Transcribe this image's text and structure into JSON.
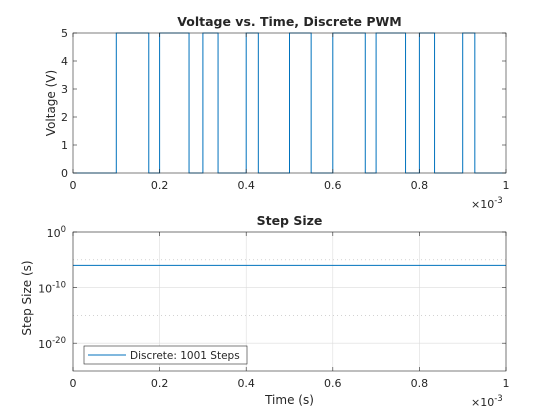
{
  "chart_data": [
    {
      "type": "line",
      "title": "Voltage vs. Time, Discrete PWM",
      "xlabel": "",
      "ylabel": "Voltage (V)",
      "xlim": [
        0,
        0.001
      ],
      "ylim": [
        0,
        5
      ],
      "x_exponent_label": "×10",
      "x_exponent_power": "-3",
      "xticks": [
        0,
        0.0002,
        0.0004,
        0.0006,
        0.0008,
        0.001
      ],
      "xtick_labels": [
        "0",
        "0.2",
        "0.4",
        "0.6",
        "0.8",
        "1"
      ],
      "yticks": [
        0,
        1,
        2,
        3,
        4,
        5
      ],
      "ytick_labels": [
        "0",
        "1",
        "2",
        "3",
        "4",
        "5"
      ],
      "grid": false,
      "color": "#0072bd",
      "pulses": [
        [
          0.0001,
          0.000175
        ],
        [
          0.0002,
          0.000268
        ],
        [
          0.0003,
          0.000335
        ],
        [
          0.0004,
          0.000428
        ],
        [
          0.0005,
          0.00055
        ],
        [
          0.0006,
          0.000675
        ],
        [
          0.0007,
          0.000768
        ],
        [
          0.0008,
          0.000835
        ],
        [
          0.0009,
          0.000928
        ]
      ]
    },
    {
      "type": "line",
      "title": "Step Size",
      "xlabel": "Time (s)",
      "ylabel": "Step Size (s)",
      "xlim": [
        0,
        0.001
      ],
      "ylog_lim": [
        -25,
        0
      ],
      "yscale": "log",
      "x_exponent_label": "×10",
      "x_exponent_power": "-3",
      "xticks": [
        0,
        0.0002,
        0.0004,
        0.0006,
        0.0008,
        0.001
      ],
      "xtick_labels": [
        "0",
        "0.2",
        "0.4",
        "0.6",
        "0.8",
        "1"
      ],
      "yticks_exp": [
        0,
        -10,
        -20
      ],
      "ytick_base": "10",
      "ytick_powers": [
        "0",
        "-10",
        "-20"
      ],
      "grid": true,
      "legend_location": "bottom-left",
      "series": [
        {
          "name": "Discrete: 1001 Steps",
          "x": [
            0,
            0.001
          ],
          "y": [
            1e-06,
            1e-06
          ],
          "color": "#0072bd"
        }
      ]
    }
  ]
}
